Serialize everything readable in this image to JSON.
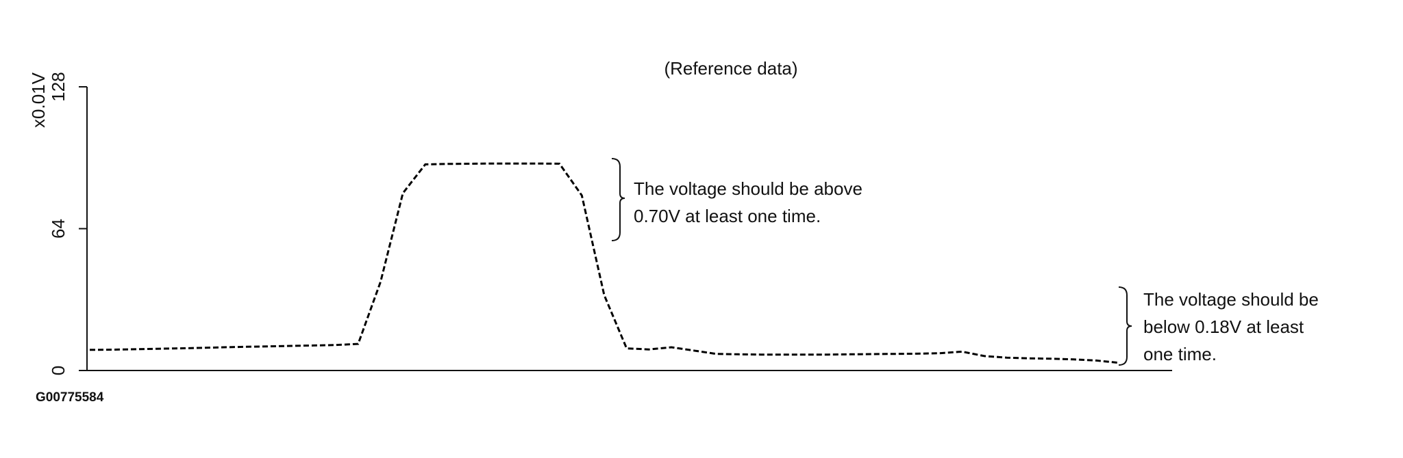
{
  "chart_data": {
    "type": "line",
    "title": "(Reference data)",
    "y_label": "x0.01V",
    "values": [
      9.3,
      9.4,
      9.6,
      9.8,
      10,
      10.2,
      10.5,
      10.7,
      10.9,
      11.1,
      11.3,
      11.5,
      12,
      40,
      80,
      93,
      93.2,
      93.3,
      93.4,
      93.4,
      93.4,
      93.3,
      79,
      34,
      10,
      9.5,
      10.5,
      9,
      7.5,
      7.3,
      7.2,
      7.2,
      7.2,
      7.2,
      7.3,
      7.4,
      7.5,
      7.6,
      7.8,
      8.5,
      6.5,
      5.8,
      5.5,
      5.3,
      5,
      4.5,
      3.5
    ],
    "color": "#000000",
    "ylim": [
      0,
      128
    ],
    "yticks": [
      0,
      64,
      128
    ],
    "annotations": [
      {
        "lines": [
          "The voltage should be above",
          "0.70V at least one time."
        ]
      },
      {
        "lines": [
          "The voltage should be",
          "below 0.18V at least",
          "one time."
        ]
      }
    ],
    "figure_code": "G00775584"
  }
}
